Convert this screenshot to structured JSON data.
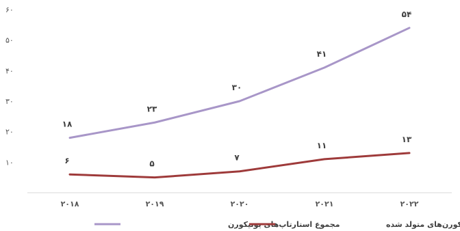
{
  "chart_data": {
    "type": "line",
    "categories": [
      "۲۰۱۸",
      "۲۰۱۹",
      "۲۰۲۰",
      "۲۰۲۱",
      "۲۰۲۲"
    ],
    "y_ticks": [
      "۱۰",
      "۲۰",
      "۳۰",
      "۴۰",
      "۵۰",
      "۶۰"
    ],
    "y_tick_values": [
      10,
      20,
      30,
      40,
      50,
      60
    ],
    "ylim": [
      0,
      60
    ],
    "grid": false,
    "legend_position": "bottom",
    "series": [
      {
        "name": "مجموع استارتاپ‌های یونیکورن",
        "values": [
          18,
          23,
          30,
          41,
          54
        ],
        "labels": [
          "۱۸",
          "۲۳",
          "۳۰",
          "۴۱",
          "۵۴"
        ],
        "color": "#a896c8"
      },
      {
        "name": "تعداد یونیکورن‌های متولد شده",
        "values": [
          6,
          5,
          7,
          11,
          13
        ],
        "labels": [
          "۶",
          "۵",
          "۷",
          "۱۱",
          "۱۳"
        ],
        "color": "#9e3a3a"
      }
    ]
  }
}
